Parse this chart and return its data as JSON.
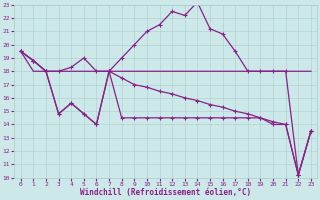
{
  "xlabel": "Windchill (Refroidissement éolien,°C)",
  "background_color": "#cce8e8",
  "grid_color": "#aacccc",
  "line_color": "#882288",
  "xmin": 0,
  "xmax": 23,
  "ymin": 10,
  "ymax": 23,
  "x": [
    0,
    1,
    2,
    3,
    4,
    5,
    6,
    7,
    8,
    9,
    10,
    11,
    12,
    13,
    14,
    15,
    16,
    17,
    18,
    19,
    20,
    21,
    22,
    23
  ],
  "line_top": [
    19.5,
    18.8,
    18.0,
    18.0,
    18.3,
    19.0,
    18.0,
    18.0,
    19.0,
    20.0,
    21.0,
    21.5,
    22.5,
    22.2,
    23.2,
    21.2,
    20.8,
    19.5,
    18.0,
    18.0,
    18.0,
    18.0,
    10.2,
    13.5
  ],
  "line_flat": [
    19.5,
    18.0,
    18.0,
    18.0,
    18.0,
    18.0,
    18.0,
    18.0,
    18.0,
    18.0,
    18.0,
    18.0,
    18.0,
    18.0,
    18.0,
    18.0,
    18.0,
    18.0,
    18.0,
    18.0,
    18.0,
    18.0,
    18.0,
    18.0
  ],
  "line_mid": [
    19.5,
    18.8,
    18.0,
    14.8,
    15.6,
    14.8,
    14.0,
    18.0,
    17.5,
    17.0,
    16.8,
    16.5,
    16.3,
    16.0,
    15.8,
    15.5,
    15.3,
    15.0,
    14.8,
    14.5,
    14.2,
    14.0,
    10.2,
    13.5
  ],
  "line_bot": [
    19.5,
    18.8,
    18.0,
    14.8,
    15.6,
    14.8,
    14.0,
    18.0,
    14.5,
    14.5,
    14.5,
    14.5,
    14.5,
    14.5,
    14.5,
    14.5,
    14.5,
    14.5,
    14.5,
    14.5,
    14.0,
    14.0,
    10.2,
    13.5
  ]
}
